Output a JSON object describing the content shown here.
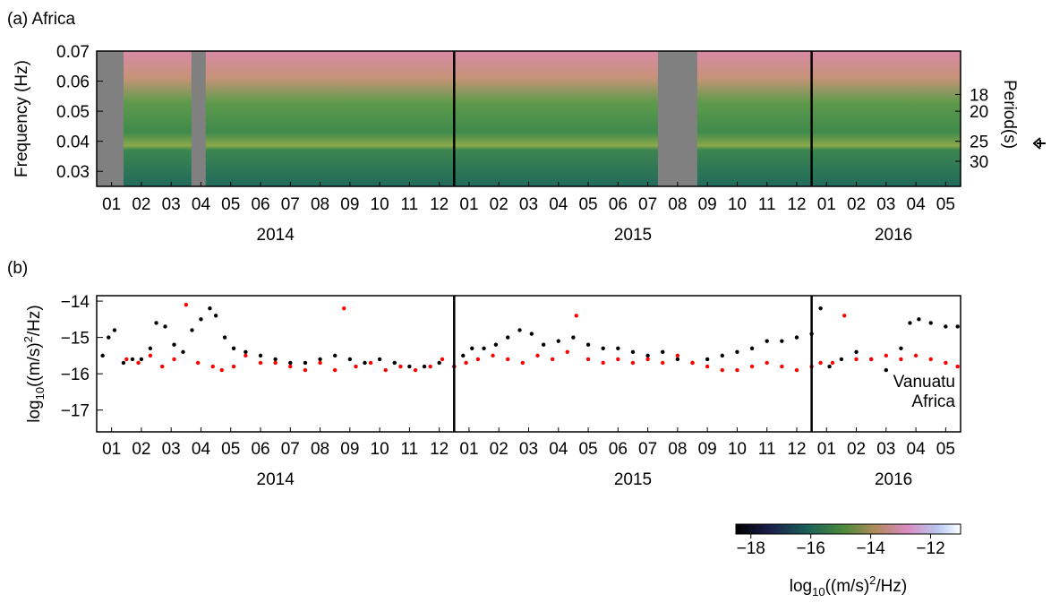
{
  "chart_data": [
    {
      "type": "spectrogram",
      "title": "(a) Africa",
      "ylabel": "Frequency (Hz)",
      "xlim": [
        0,
        29
      ],
      "ylim": [
        0.025,
        0.07
      ],
      "yticks": [
        0.03,
        0.04,
        0.05,
        0.06,
        0.07
      ],
      "xticks": [
        {
          "value": 0.5,
          "label": "01"
        },
        {
          "value": 1.5,
          "label": "02"
        },
        {
          "value": 2.5,
          "label": "03"
        },
        {
          "value": 3.5,
          "label": "04"
        },
        {
          "value": 4.5,
          "label": "05"
        },
        {
          "value": 5.5,
          "label": "06"
        },
        {
          "value": 6.5,
          "label": "07"
        },
        {
          "value": 7.5,
          "label": "08"
        },
        {
          "value": 8.5,
          "label": "09"
        },
        {
          "value": 9.5,
          "label": "10"
        },
        {
          "value": 10.5,
          "label": "11"
        },
        {
          "value": 11.5,
          "label": "12"
        },
        {
          "value": 12.5,
          "label": "01"
        },
        {
          "value": 13.5,
          "label": "02"
        },
        {
          "value": 14.5,
          "label": "03"
        },
        {
          "value": 15.5,
          "label": "04"
        },
        {
          "value": 16.5,
          "label": "05"
        },
        {
          "value": 17.5,
          "label": "06"
        },
        {
          "value": 18.5,
          "label": "07"
        },
        {
          "value": 19.5,
          "label": "08"
        },
        {
          "value": 20.5,
          "label": "09"
        },
        {
          "value": 21.5,
          "label": "10"
        },
        {
          "value": 22.5,
          "label": "11"
        },
        {
          "value": 23.5,
          "label": "12"
        },
        {
          "value": 24.5,
          "label": "01"
        },
        {
          "value": 25.5,
          "label": "02"
        },
        {
          "value": 26.5,
          "label": "03"
        },
        {
          "value": 27.5,
          "label": "04"
        },
        {
          "value": 28.5,
          "label": "05"
        }
      ],
      "years": [
        {
          "value": 6,
          "label": "2014"
        },
        {
          "value": 18,
          "label": "2015"
        },
        {
          "value": 26.75,
          "label": "2016"
        }
      ],
      "separators": [
        12,
        24
      ],
      "gaps": [
        [
          0,
          0.9
        ],
        [
          3.18,
          3.66
        ],
        [
          18.84,
          20.16
        ]
      ],
      "period_label": "Period(s)",
      "period_ticks": [
        18,
        20,
        25,
        30
      ],
      "colorbar": {
        "lim": [
          -18.5,
          -11
        ],
        "ticks": [
          {
            "value": -18,
            "label": "−18"
          },
          {
            "value": -16,
            "label": "−16"
          },
          {
            "value": -14,
            "label": "−14"
          },
          {
            "value": -12,
            "label": "−12"
          }
        ],
        "label": {
          "text": "log",
          "sub": "10",
          "text2": "((m/s)",
          "sup": "2",
          "text3": "/Hz)"
        }
      }
    },
    {
      "type": "scatter",
      "title": "(b)",
      "ylabel": {
        "text": "log",
        "sub": "10",
        "text2": "((m/s)",
        "sup": "2",
        "text3": "/Hz)"
      },
      "xlim": [
        0,
        29
      ],
      "ylim": [
        -17.6,
        -13.85
      ],
      "yticks": [
        {
          "value": -14,
          "label": "−14"
        },
        {
          "value": -15,
          "label": "−15"
        },
        {
          "value": -16,
          "label": "−16"
        },
        {
          "value": -17,
          "label": "−17"
        }
      ],
      "xticks": [
        {
          "value": 0.5,
          "label": "01"
        },
        {
          "value": 1.5,
          "label": "02"
        },
        {
          "value": 2.5,
          "label": "03"
        },
        {
          "value": 3.5,
          "label": "04"
        },
        {
          "value": 4.5,
          "label": "05"
        },
        {
          "value": 5.5,
          "label": "06"
        },
        {
          "value": 6.5,
          "label": "07"
        },
        {
          "value": 7.5,
          "label": "08"
        },
        {
          "value": 8.5,
          "label": "09"
        },
        {
          "value": 9.5,
          "label": "10"
        },
        {
          "value": 10.5,
          "label": "11"
        },
        {
          "value": 11.5,
          "label": "12"
        },
        {
          "value": 12.5,
          "label": "01"
        },
        {
          "value": 13.5,
          "label": "02"
        },
        {
          "value": 14.5,
          "label": "03"
        },
        {
          "value": 15.5,
          "label": "04"
        },
        {
          "value": 16.5,
          "label": "05"
        },
        {
          "value": 17.5,
          "label": "06"
        },
        {
          "value": 18.5,
          "label": "07"
        },
        {
          "value": 19.5,
          "label": "08"
        },
        {
          "value": 20.5,
          "label": "09"
        },
        {
          "value": 21.5,
          "label": "10"
        },
        {
          "value": 22.5,
          "label": "11"
        },
        {
          "value": 23.5,
          "label": "12"
        },
        {
          "value": 24.5,
          "label": "01"
        },
        {
          "value": 25.5,
          "label": "02"
        },
        {
          "value": 26.5,
          "label": "03"
        },
        {
          "value": 27.5,
          "label": "04"
        },
        {
          "value": 28.5,
          "label": "05"
        }
      ],
      "years": [
        {
          "value": 6,
          "label": "2014"
        },
        {
          "value": 18,
          "label": "2015"
        },
        {
          "value": 26.75,
          "label": "2016"
        }
      ],
      "separators": [
        12,
        24
      ],
      "series": [
        {
          "name": "Vanuatu",
          "color": "#000000",
          "x": [
            0.2,
            0.4,
            0.6,
            0.9,
            1.2,
            1.5,
            1.8,
            2.0,
            2.3,
            2.6,
            2.9,
            3.2,
            3.5,
            3.8,
            4.0,
            4.3,
            4.6,
            5.0,
            5.5,
            6.0,
            6.5,
            7.0,
            7.5,
            8.0,
            8.5,
            9.0,
            9.5,
            10.0,
            10.5,
            11.0,
            11.5,
            12.0,
            12.3,
            12.6,
            13.0,
            13.4,
            13.8,
            14.2,
            14.6,
            15.0,
            15.5,
            16.0,
            16.5,
            17.0,
            17.5,
            18.0,
            18.5,
            19.0,
            19.5,
            20.0,
            20.5,
            21.0,
            21.5,
            22.0,
            22.5,
            23.0,
            23.5,
            24.0,
            24.3,
            24.6,
            25.0,
            25.5,
            26.0,
            26.5,
            27.0,
            27.3,
            27.6,
            28.0,
            28.5,
            28.9
          ],
          "values": [
            -15.5,
            -15.0,
            -14.8,
            -15.7,
            -15.6,
            -15.6,
            -15.3,
            -14.6,
            -14.7,
            -15.2,
            -15.4,
            -14.8,
            -14.5,
            -14.2,
            -14.4,
            -15.0,
            -15.3,
            -15.4,
            -15.5,
            -15.6,
            -15.7,
            -15.7,
            -15.6,
            -15.5,
            -15.6,
            -15.7,
            -15.6,
            -15.7,
            -15.8,
            -15.8,
            -15.7,
            -15.8,
            -15.5,
            -15.3,
            -15.3,
            -15.2,
            -15.0,
            -14.8,
            -14.9,
            -15.2,
            -15.1,
            -15.0,
            -15.2,
            -15.3,
            -15.3,
            -15.4,
            -15.5,
            -15.4,
            -15.6,
            -15.7,
            -15.6,
            -15.5,
            -15.4,
            -15.3,
            -15.1,
            -15.1,
            -15.0,
            -14.9,
            -14.2,
            -15.8,
            -15.6,
            -15.4,
            -15.6,
            -15.9,
            -15.3,
            -14.6,
            -14.5,
            -14.6,
            -14.7,
            -14.7
          ]
        },
        {
          "name": "Africa",
          "color": "#ff0000",
          "x": [
            1.0,
            1.4,
            1.8,
            2.2,
            2.6,
            3.0,
            3.4,
            3.9,
            4.2,
            4.6,
            5.0,
            5.5,
            6.0,
            6.5,
            7.0,
            7.5,
            8.0,
            8.3,
            8.7,
            9.2,
            9.7,
            10.2,
            10.7,
            11.2,
            11.6,
            12.0,
            12.4,
            12.8,
            13.3,
            13.8,
            14.3,
            14.8,
            15.3,
            15.8,
            16.1,
            16.5,
            17.0,
            17.5,
            18.0,
            18.5,
            19.0,
            19.5,
            20.0,
            20.5,
            21.0,
            21.5,
            22.0,
            22.5,
            23.0,
            23.5,
            24.0,
            24.3,
            24.7,
            25.1,
            25.5,
            26.0,
            26.5,
            27.0,
            27.5,
            28.0,
            28.5,
            28.9
          ],
          "values": [
            -15.6,
            -15.7,
            -15.5,
            -15.8,
            -15.6,
            -14.1,
            -15.7,
            -15.8,
            -15.9,
            -15.8,
            -15.5,
            -15.7,
            -15.7,
            -15.8,
            -15.9,
            -15.7,
            -15.9,
            -14.2,
            -15.8,
            -15.7,
            -15.9,
            -15.8,
            -15.9,
            -15.8,
            -15.6,
            -15.8,
            -15.7,
            -15.6,
            -15.5,
            -15.6,
            -15.7,
            -15.5,
            -15.6,
            -15.4,
            -14.4,
            -15.6,
            -15.7,
            -15.6,
            -15.7,
            -15.6,
            -15.7,
            -15.5,
            -15.7,
            -15.8,
            -15.9,
            -15.9,
            -15.8,
            -15.7,
            -15.8,
            -15.9,
            -15.8,
            -15.7,
            -15.7,
            -14.4,
            -15.6,
            -15.6,
            -15.5,
            -15.6,
            -15.5,
            -15.6,
            -15.7,
            -15.8
          ]
        }
      ]
    }
  ]
}
